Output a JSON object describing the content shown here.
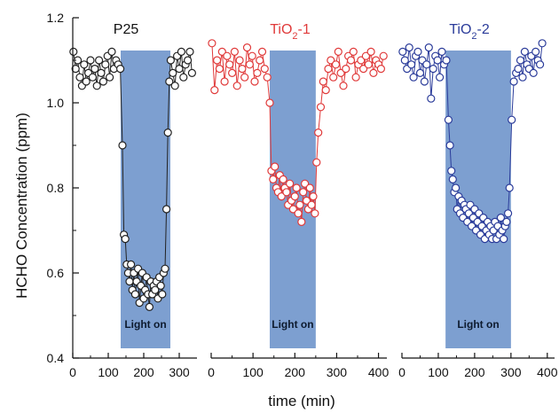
{
  "chart_data": {
    "type": "scatter",
    "ylabel": "HCHO Concentration (ppm)",
    "xlabel": "time (min)",
    "ylim": [
      0.4,
      1.2
    ],
    "yticks": [
      "0.4",
      "0.6",
      "0.8",
      "1.0",
      "1.2"
    ],
    "panels": [
      {
        "title": "P25",
        "title_color": "#111111",
        "marker_color": "#222222",
        "xlim": [
          0,
          350
        ],
        "xticks": [
          "0",
          "100",
          "200",
          "300"
        ],
        "light_on": [
          135,
          275
        ],
        "light_label": "Light on",
        "series": [
          {
            "x": [
              2,
              8,
              14,
              20,
              26,
              32,
              38,
              44,
              50,
              56,
              62,
              68,
              74,
              80,
              86,
              92,
              98,
              104,
              110,
              116,
              122,
              128,
              134,
              140,
              144,
              148,
              152,
              156,
              160,
              164,
              168,
              172,
              176,
              180,
              184,
              188,
              192,
              196,
              200,
              204,
              208,
              212,
              216,
              220,
              224,
              228,
              232,
              236,
              240,
              244,
              248,
              252,
              256,
              260,
              264,
              268,
              272,
              276,
              282,
              288,
              294,
              300,
              306,
              312,
              318,
              324,
              330,
              336
            ],
            "y": [
              1.12,
              1.08,
              1.1,
              1.06,
              1.04,
              1.09,
              1.05,
              1.07,
              1.1,
              1.06,
              1.08,
              1.04,
              1.1,
              1.07,
              1.05,
              1.09,
              1.11,
              1.06,
              1.12,
              1.08,
              1.1,
              1.09,
              1.08,
              0.9,
              0.69,
              0.68,
              0.62,
              0.6,
              0.58,
              0.62,
              0.56,
              0.6,
              0.55,
              0.58,
              0.61,
              0.53,
              0.57,
              0.6,
              0.54,
              0.56,
              0.59,
              0.55,
              0.52,
              0.58,
              0.55,
              0.57,
              0.56,
              0.58,
              0.54,
              0.59,
              0.57,
              0.55,
              0.6,
              0.61,
              0.75,
              0.93,
              1.05,
              1.1,
              1.07,
              1.04,
              1.11,
              1.08,
              1.12,
              1.06,
              1.09,
              1.1,
              1.12,
              1.07
            ]
          }
        ]
      },
      {
        "title": "TiO2-1",
        "title_main": "TiO",
        "title_sub": "2",
        "title_suffix": "-1",
        "title_color": "#e03a3a",
        "marker_color": "#e03a3a",
        "xlim": [
          0,
          420
        ],
        "xticks": [
          "0",
          "100",
          "200",
          "300",
          "400"
        ],
        "light_on": [
          140,
          250
        ],
        "light_label": "Light on",
        "series": [
          {
            "x": [
              2,
              8,
              14,
              20,
              26,
              32,
              38,
              44,
              50,
              56,
              62,
              68,
              74,
              80,
              86,
              92,
              98,
              104,
              110,
              116,
              122,
              128,
              134,
              140,
              144,
              148,
              152,
              156,
              160,
              164,
              168,
              172,
              176,
              180,
              184,
              188,
              192,
              196,
              200,
              204,
              208,
              212,
              216,
              220,
              224,
              228,
              232,
              236,
              240,
              244,
              248,
              252,
              256,
              262,
              268,
              274,
              280,
              286,
              292,
              298,
              304,
              310,
              316,
              322,
              328,
              334,
              340,
              346,
              352,
              358,
              364,
              370,
              376,
              382,
              388,
              394,
              400,
              406,
              412
            ],
            "y": [
              1.14,
              1.03,
              1.1,
              1.08,
              1.12,
              1.05,
              1.11,
              1.09,
              1.07,
              1.12,
              1.04,
              1.1,
              1.08,
              1.06,
              1.13,
              1.09,
              1.11,
              1.05,
              1.07,
              1.1,
              1.12,
              1.08,
              1.06,
              1.0,
              0.84,
              0.82,
              0.85,
              0.8,
              0.79,
              0.83,
              0.78,
              0.82,
              0.8,
              0.79,
              0.76,
              0.81,
              0.77,
              0.75,
              0.78,
              0.8,
              0.74,
              0.76,
              0.72,
              0.79,
              0.81,
              0.77,
              0.75,
              0.8,
              0.76,
              0.78,
              0.74,
              0.86,
              0.93,
              0.99,
              1.05,
              1.03,
              1.08,
              1.1,
              1.06,
              1.09,
              1.12,
              1.07,
              1.04,
              1.08,
              1.11,
              1.1,
              1.12,
              1.06,
              1.09,
              1.1,
              1.08,
              1.11,
              1.09,
              1.12,
              1.07,
              1.1,
              1.09,
              1.08,
              1.11
            ]
          }
        ]
      },
      {
        "title": "TiO2-2",
        "title_main": "TiO",
        "title_sub": "2",
        "title_suffix": "-2",
        "title_color": "#2b3c9a",
        "marker_color": "#2b3c9a",
        "xlim": [
          0,
          420
        ],
        "xticks": [
          "0",
          "100",
          "200",
          "300",
          "400"
        ],
        "light_on": [
          120,
          300
        ],
        "light_label": "Light on",
        "series": [
          {
            "x": [
              2,
              8,
              14,
              20,
              26,
              32,
              38,
              44,
              50,
              56,
              62,
              68,
              74,
              80,
              86,
              92,
              98,
              104,
              110,
              116,
              122,
              128,
              132,
              136,
              140,
              144,
              148,
              152,
              156,
              160,
              164,
              168,
              172,
              176,
              180,
              184,
              188,
              192,
              196,
              200,
              204,
              208,
              212,
              216,
              220,
              224,
              228,
              232,
              236,
              240,
              244,
              248,
              252,
              256,
              260,
              264,
              268,
              272,
              276,
              280,
              284,
              288,
              292,
              296,
              302,
              308,
              314,
              320,
              326,
              332,
              338,
              344,
              350,
              356,
              362,
              368,
              374,
              380,
              386
            ],
            "y": [
              1.12,
              1.1,
              1.08,
              1.13,
              1.09,
              1.06,
              1.11,
              1.12,
              1.07,
              1.1,
              1.05,
              1.09,
              1.13,
              1.01,
              1.08,
              1.11,
              1.1,
              1.06,
              1.12,
              1.09,
              1.1,
              0.96,
              0.9,
              0.84,
              0.82,
              0.79,
              0.8,
              0.75,
              0.78,
              0.74,
              0.77,
              0.73,
              0.76,
              0.75,
              0.72,
              0.74,
              0.76,
              0.71,
              0.73,
              0.75,
              0.7,
              0.72,
              0.74,
              0.69,
              0.71,
              0.73,
              0.68,
              0.7,
              0.72,
              0.69,
              0.71,
              0.68,
              0.7,
              0.72,
              0.68,
              0.71,
              0.69,
              0.73,
              0.7,
              0.68,
              0.71,
              0.72,
              0.74,
              0.8,
              0.96,
              1.05,
              1.07,
              1.08,
              1.1,
              1.06,
              1.12,
              1.09,
              1.08,
              1.11,
              1.07,
              1.12,
              1.1,
              1.09,
              1.14
            ]
          }
        ]
      }
    ]
  }
}
